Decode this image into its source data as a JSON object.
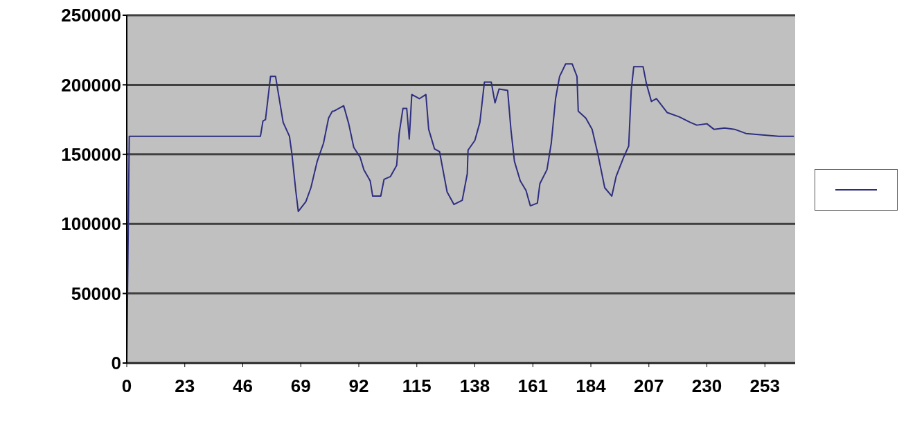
{
  "chart_data": {
    "type": "line",
    "x": [
      0,
      1,
      53,
      54,
      55,
      57,
      59,
      62,
      64.5,
      65.5,
      67,
      68,
      71,
      73,
      75.5,
      78,
      80,
      81.5,
      82,
      86,
      88,
      90,
      92.5,
      94,
      96.5,
      97.5,
      100.7,
      102,
      104.5,
      107,
      108,
      109.5,
      111,
      112,
      113,
      116,
      118.6,
      119.7,
      122,
      124,
      127,
      129.7,
      133,
      135,
      135.3,
      138,
      140,
      141.8,
      144.5,
      146,
      147.6,
      151,
      152.3,
      153.7,
      156,
      158.3,
      160,
      162.8,
      163.8,
      166.6,
      168.3,
      170,
      171.6,
      174,
      176.6,
      178.5,
      179,
      182,
      184.5,
      186.8,
      189.5,
      192.3,
      194,
      197,
      199,
      200,
      201,
      204.7,
      206,
      208,
      210,
      214.3,
      219,
      223.4,
      226,
      230,
      232.8,
      237,
      241,
      245.5,
      252,
      258.5,
      264.5
    ],
    "series": [
      {
        "color": "#2e2e80",
        "values": [
          0,
          163000,
          163000,
          174000,
          175000,
          206000,
          206000,
          173000,
          163000,
          150000,
          124000,
          109000,
          116000,
          126000,
          145000,
          158000,
          176000,
          181000,
          181000,
          185000,
          172000,
          155000,
          148000,
          139000,
          131000,
          120000,
          120000,
          132000,
          134000,
          142000,
          165000,
          183000,
          183000,
          161000,
          193000,
          190000,
          193000,
          168000,
          154000,
          152000,
          123000,
          114000,
          117000,
          136000,
          153000,
          160000,
          173000,
          202000,
          202000,
          187000,
          197000,
          196000,
          168000,
          145000,
          131000,
          124000,
          113000,
          115000,
          129000,
          139000,
          158000,
          190000,
          206000,
          215000,
          215000,
          206000,
          181000,
          176000,
          168000,
          150000,
          126000,
          120000,
          134000,
          148000,
          156000,
          196000,
          213000,
          213000,
          201000,
          188000,
          190000,
          180000,
          177000,
          173000,
          171000,
          172000,
          168000,
          169000,
          168000,
          165000,
          164000,
          163000,
          163000
        ]
      }
    ],
    "xlim": [
      0,
      265
    ],
    "xticks": [
      0,
      23,
      46,
      69,
      92,
      115,
      138,
      161,
      184,
      207,
      230,
      253
    ],
    "ylim": [
      0,
      250000
    ],
    "yticks": [
      0,
      50000,
      100000,
      150000,
      200000,
      250000
    ],
    "grid": "y",
    "marker": "none",
    "line_style": "solid"
  }
}
